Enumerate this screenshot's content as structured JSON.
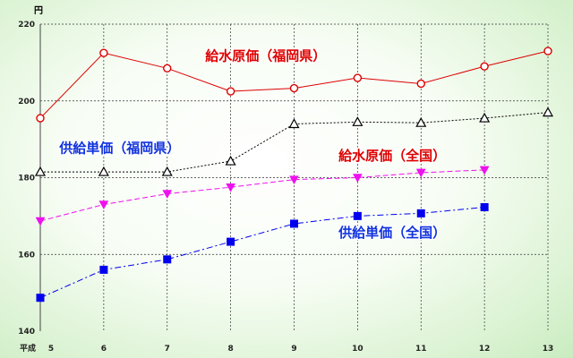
{
  "chart_data": {
    "type": "line",
    "title": "",
    "xlabel": "",
    "ylabel": "円",
    "x_prefix": "平成",
    "categories": [
      "5",
      "6",
      "7",
      "8",
      "9",
      "10",
      "11",
      "12",
      "13"
    ],
    "ylim": [
      140,
      220
    ],
    "yticks": [
      "140",
      "160",
      "180",
      "200",
      "220"
    ],
    "grid": true,
    "series": [
      {
        "name": "給水原価（福岡県）",
        "color": "#dd0000",
        "marker": "circle-open",
        "line": "solid",
        "values": [
          195.5,
          212.5,
          208.5,
          202.5,
          203.3,
          206,
          204.5,
          209,
          213
        ]
      },
      {
        "name": "",
        "color": "#000000",
        "marker": "triangle-open",
        "line": "dotted",
        "values": [
          181.5,
          181.5,
          181.5,
          184.3,
          194,
          194.5,
          194.3,
          195.5,
          197
        ]
      },
      {
        "name": "給水原価（全国）",
        "color": "#ee11ee",
        "marker": "triangle-down-filled",
        "line": "dashed",
        "values": [
          168.7,
          173,
          175.8,
          177.5,
          179.5,
          180,
          181.3,
          182,
          null
        ]
      },
      {
        "name": "供給単価（全国）",
        "color": "#0000ee",
        "marker": "square-filled",
        "line": "dashdot",
        "values": [
          148.7,
          156,
          158.7,
          163.3,
          168,
          170,
          170.7,
          172.3,
          null
        ]
      }
    ],
    "annotations": [
      {
        "text": "給水原価（福岡県）",
        "color": "#dd0000",
        "x": "7.6",
        "y": 210.5
      },
      {
        "text": "供給単価（福岡県）",
        "color": "#1133dd",
        "x": "5.3",
        "y": 186.5
      },
      {
        "text": "給水原価（全国）",
        "color": "#dd0000",
        "x": "9.7",
        "y": 184.5
      },
      {
        "text": "供給単価（全国）",
        "color": "#1133dd",
        "x": "9.7",
        "y": 164.5
      }
    ]
  }
}
